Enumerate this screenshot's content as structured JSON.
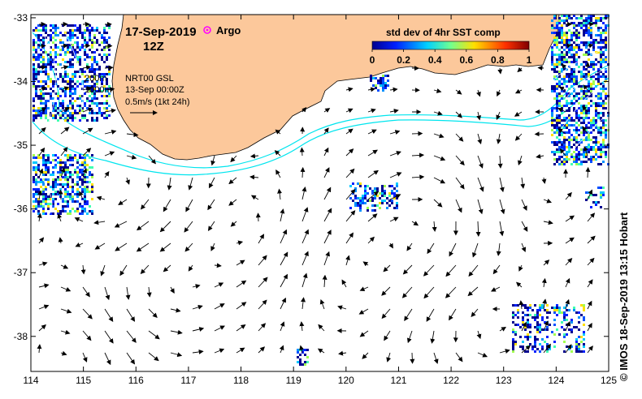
{
  "title": {
    "date": "17-Sep-2019",
    "time": "12Z",
    "argo_label": "Argo"
  },
  "annotations": {
    "depth_200": "200m",
    "depth_1000": "1000m",
    "product": "NRT00 GSL",
    "product_date": "13-Sep 00:00Z",
    "scale": "0.5m/s (1kt 24h)"
  },
  "colorbar": {
    "title": "std dev of 4hr SST comp",
    "ticks": [
      "0",
      "0.2",
      "0.4",
      "0.6",
      "0.8",
      "1"
    ]
  },
  "axes": {
    "x_ticks": [
      "114",
      "115",
      "116",
      "117",
      "118",
      "119",
      "120",
      "121",
      "122",
      "123",
      "124",
      "125"
    ],
    "y_ticks": [
      "-33",
      "-34",
      "-35",
      "-36",
      "-37",
      "-38"
    ],
    "xlim": [
      114,
      125
    ],
    "ylim": [
      -38.55,
      -32.95
    ]
  },
  "credit": "© IMOS 18-Sep-2019 13:15 Hobart",
  "colors": {
    "land": "#fcc89b",
    "isobath": "#00e5ee",
    "argo": "#ff00ff",
    "ocean": "#ffffff"
  }
}
